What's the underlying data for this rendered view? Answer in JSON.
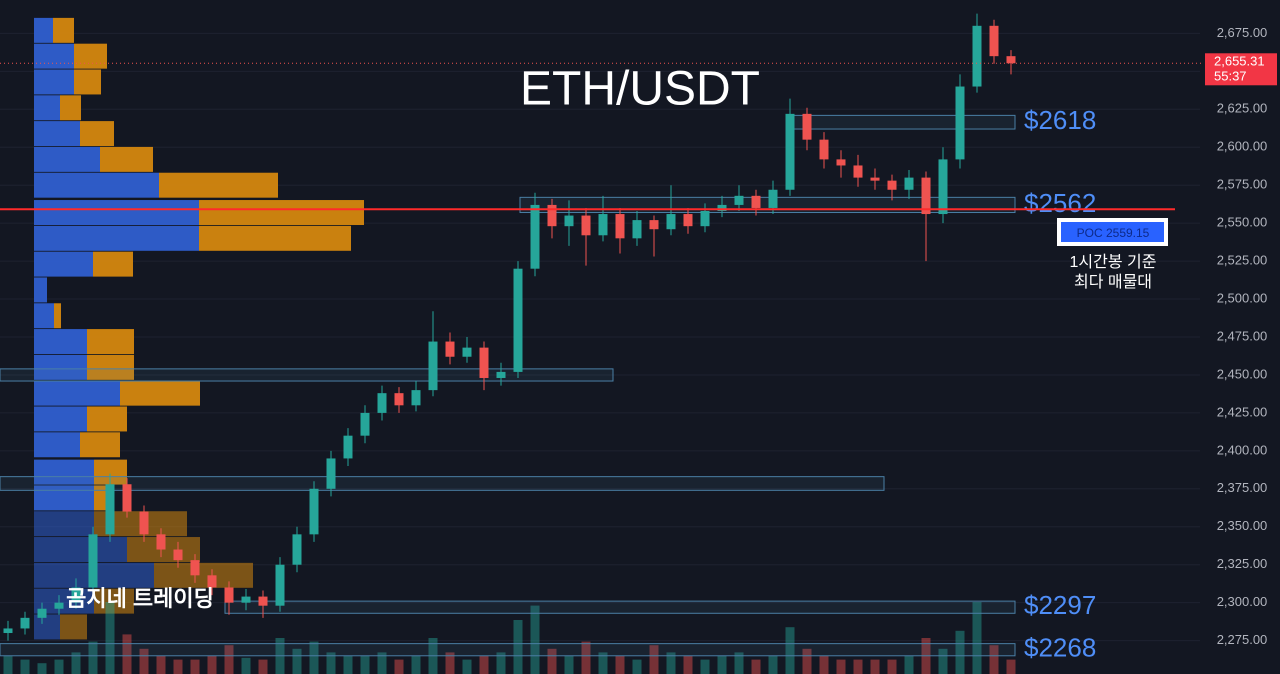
{
  "chart_data": {
    "type": "candlestick",
    "title": "ETH/USDT",
    "ylim": [
      2253,
      2697
    ],
    "yticks": [
      {
        "value": 2275,
        "label": "2,275.00"
      },
      {
        "value": 2300,
        "label": "2,300.00"
      },
      {
        "value": 2325,
        "label": "2,325.00"
      },
      {
        "value": 2350,
        "label": "2,350.00"
      },
      {
        "value": 2375,
        "label": "2,375.00"
      },
      {
        "value": 2400,
        "label": "2,400.00"
      },
      {
        "value": 2425,
        "label": "2,425.00"
      },
      {
        "value": 2450,
        "label": "2,450.00"
      },
      {
        "value": 2475,
        "label": "2,475.00"
      },
      {
        "value": 2500,
        "label": "2,500.00"
      },
      {
        "value": 2525,
        "label": "2,525.00"
      },
      {
        "value": 2550,
        "label": "2,550.00"
      },
      {
        "value": 2575,
        "label": "2,575.00"
      },
      {
        "value": 2600,
        "label": "2,600.00"
      },
      {
        "value": 2625,
        "label": "2,625.00"
      },
      {
        "value": 2650,
        "label": "2,650.00"
      },
      {
        "value": 2675,
        "label": "2,675.00"
      }
    ],
    "grid": true,
    "up_color": "#26a69a",
    "down_color": "#ef5350",
    "open": [
      2280,
      2283,
      2290,
      2296,
      2300,
      2310,
      2345,
      2378,
      2360,
      2345,
      2335,
      2328,
      2318,
      2310,
      2300,
      2304,
      2298,
      2325,
      2345,
      2375,
      2395,
      2410,
      2425,
      2438,
      2430,
      2440,
      2472,
      2462,
      2468,
      2448,
      2452,
      2520,
      2562,
      2548,
      2555,
      2542,
      2556,
      2540,
      2552,
      2546,
      2556,
      2548,
      2558,
      2562,
      2568,
      2560,
      2572,
      2622,
      2605,
      2592,
      2588,
      2580,
      2578,
      2572,
      2580,
      2556,
      2592,
      2640,
      2680,
      2660
    ],
    "high": [
      2288,
      2294,
      2300,
      2305,
      2316,
      2350,
      2385,
      2382,
      2364,
      2349,
      2340,
      2332,
      2322,
      2314,
      2309,
      2308,
      2330,
      2350,
      2380,
      2400,
      2415,
      2430,
      2443,
      2442,
      2446,
      2492,
      2478,
      2475,
      2472,
      2458,
      2525,
      2570,
      2566,
      2565,
      2560,
      2568,
      2560,
      2558,
      2555,
      2575,
      2560,
      2563,
      2568,
      2575,
      2572,
      2578,
      2632,
      2626,
      2610,
      2598,
      2595,
      2586,
      2582,
      2585,
      2584,
      2600,
      2648,
      2688,
      2684,
      2664
    ],
    "low": [
      2275,
      2279,
      2286,
      2292,
      2296,
      2306,
      2340,
      2356,
      2340,
      2330,
      2323,
      2313,
      2305,
      2292,
      2295,
      2290,
      2294,
      2320,
      2340,
      2370,
      2390,
      2405,
      2420,
      2425,
      2426,
      2436,
      2457,
      2458,
      2440,
      2443,
      2448,
      2515,
      2540,
      2535,
      2522,
      2538,
      2530,
      2535,
      2528,
      2542,
      2543,
      2544,
      2554,
      2558,
      2555,
      2556,
      2568,
      2598,
      2586,
      2580,
      2574,
      2572,
      2565,
      2566,
      2525,
      2550,
      2586,
      2636,
      2655,
      2648
    ],
    "close": [
      2283,
      2290,
      2296,
      2300,
      2310,
      2345,
      2378,
      2360,
      2345,
      2335,
      2328,
      2318,
      2310,
      2300,
      2304,
      2298,
      2325,
      2345,
      2375,
      2395,
      2410,
      2425,
      2438,
      2430,
      2440,
      2472,
      2462,
      2468,
      2448,
      2452,
      2520,
      2562,
      2548,
      2555,
      2542,
      2556,
      2540,
      2552,
      2546,
      2556,
      2548,
      2558,
      2562,
      2568,
      2560,
      2572,
      2622,
      2605,
      2592,
      2588,
      2580,
      2578,
      2572,
      2580,
      2556,
      2592,
      2640,
      2680,
      2660,
      2655.31
    ],
    "volume": [
      10,
      8,
      6,
      8,
      12,
      18,
      40,
      22,
      14,
      10,
      8,
      8,
      10,
      16,
      9,
      8,
      20,
      14,
      18,
      12,
      10,
      10,
      12,
      8,
      10,
      20,
      12,
      8,
      10,
      12,
      30,
      38,
      14,
      10,
      18,
      12,
      10,
      8,
      16,
      12,
      10,
      8,
      10,
      12,
      8,
      10,
      26,
      14,
      10,
      8,
      8,
      8,
      8,
      10,
      20,
      14,
      24,
      40,
      16,
      8
    ],
    "volume_profile": {
      "buy_color": "#2f5fd0",
      "sell_color": "#d4870f",
      "levels": [
        2677,
        2660,
        2643,
        2626,
        2609,
        2592,
        2575,
        2557,
        2540,
        2523,
        2506,
        2489,
        2472,
        2455,
        2438,
        2421,
        2404,
        2386,
        2369,
        2352,
        2335,
        2318,
        2301,
        2284
      ],
      "buy": [
        19,
        40,
        40,
        26,
        46,
        66,
        125,
        165,
        165,
        59,
        13,
        20,
        53,
        53,
        86,
        53,
        46,
        60,
        60,
        60,
        93,
        120,
        60,
        26
      ],
      "sell": [
        21,
        33,
        27,
        21,
        34,
        53,
        119,
        165,
        152,
        40,
        0,
        7,
        47,
        47,
        80,
        40,
        40,
        33,
        20,
        93,
        73,
        99,
        40,
        27
      ]
    },
    "zones": [
      {
        "label": "$2618",
        "low": 2612,
        "high": 2621
      },
      {
        "label": "$2562",
        "low": 2557,
        "high": 2567
      },
      {
        "low": 2446,
        "high": 2454
      },
      {
        "low": 2374,
        "high": 2383
      },
      {
        "label": "$2297",
        "low": 2293,
        "high": 2301
      },
      {
        "label": "$2268",
        "low": 2265,
        "high": 2273
      }
    ],
    "poc": {
      "value": 2559.15,
      "label": "POC  2559.15"
    },
    "last_price": {
      "value": 2655.31,
      "label": "2,655.31"
    },
    "countdown": "55:37",
    "annotations": [
      "1시간봉 기준",
      "최다 매물대"
    ],
    "watermark": "곰지네 트레이딩"
  }
}
